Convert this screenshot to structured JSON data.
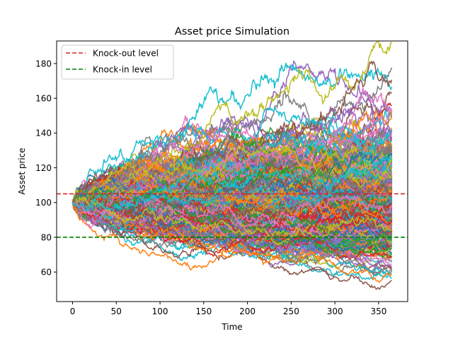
{
  "chart_data": {
    "type": "line",
    "title": "Asset price Simulation",
    "xlabel": "Time",
    "ylabel": "Asset price",
    "xlim": [
      -18.25,
      383.25
    ],
    "ylim": [
      43,
      193
    ],
    "xticks": [
      0,
      50,
      100,
      150,
      200,
      250,
      300,
      350
    ],
    "yticks": [
      60,
      80,
      100,
      120,
      140,
      160,
      180
    ],
    "grid": false,
    "legend_position": "upper-left",
    "paths": {
      "count": 400,
      "start_value": 100,
      "steps": 365,
      "volatility_per_step": 0.0108,
      "seed": 7
    },
    "series_colors": [
      "#1f77b4",
      "#ff7f0e",
      "#2ca02c",
      "#d62728",
      "#9467bd",
      "#8c564b",
      "#e377c2",
      "#7f7f7f",
      "#bcbd22",
      "#17becf"
    ],
    "reference_lines": [
      {
        "name": "Knock-out level",
        "value": 105,
        "color": "#d62728",
        "style": "dashed"
      },
      {
        "name": "Knock-in level",
        "value": 80,
        "color": "#008000",
        "style": "dashed"
      }
    ],
    "legend": [
      {
        "label": "Knock-out level",
        "color": "#d62728"
      },
      {
        "label": "Knock-in level",
        "color": "#008000"
      }
    ]
  }
}
